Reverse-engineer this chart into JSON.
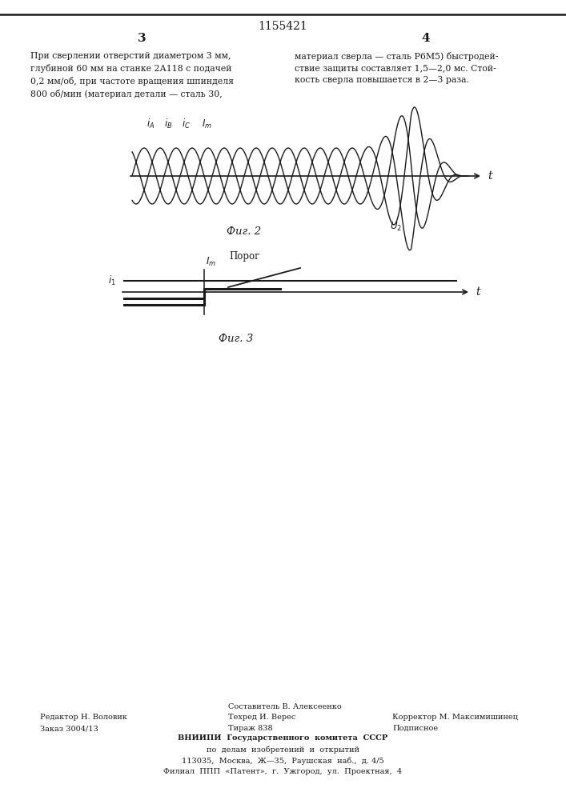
{
  "patent_number": "1155421",
  "col_left": "3",
  "col_right": "4",
  "text_left": "При сверлении отверстий диаметром 3 мм,\nглубиной 60 мм на станке 2А118 с подачей\n0,2 мм/об, при частоте вращения шпинделя\n800 об/мин (материал детали — сталь 30,",
  "text_right": "материал сверла — сталь Р6М5) быстродей-\nствие защиты составляет 1,5—2,0 мс. Стой-\nкость сверла повышается в 2—3 раза.",
  "fig2_label": "Фиг. 2",
  "fig3_label": "Фиг. 3",
  "fig2_t_label": "t",
  "fig3_t_label": "t",
  "footer_left1": "Редактор Н. Воловик",
  "footer_left2": "Заказ 3004/13",
  "footer_center1": "Составитель В. Алексеенко",
  "footer_center2": "Техред И. Верес",
  "footer_center3": "Тираж 838",
  "footer_right1": "Корректор М. Максимишинец",
  "footer_right2": "Подписное",
  "footer_vniip1": "ВНИИПИ  Государственного  комитета  СССР",
  "footer_vniip2": "по  делам  изобретений  и  открытий",
  "footer_vniip3": "113035,  Москва,  Ж—35,  Раушская  наб.,  д. 4/5",
  "footer_vniip4": "Филиал  ППП  «Патент»,  г.  Ужгород,  ул.  Проектная,  4",
  "bg_color": "#ffffff",
  "line_color": "#1a1a1a",
  "text_color": "#1a1a1a"
}
